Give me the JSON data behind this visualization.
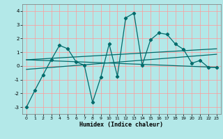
{
  "title": "",
  "xlabel": "Humidex (Indice chaleur)",
  "background_color": "#b3e8e8",
  "grid_color": "#ff9999",
  "line_color": "#006b6b",
  "xlim": [
    -0.5,
    23.5
  ],
  "ylim": [
    -3.5,
    4.5
  ],
  "yticks": [
    -3,
    -2,
    -1,
    0,
    1,
    2,
    3,
    4
  ],
  "xticks": [
    0,
    1,
    2,
    3,
    4,
    5,
    6,
    7,
    8,
    9,
    10,
    11,
    12,
    13,
    14,
    15,
    16,
    17,
    18,
    19,
    20,
    21,
    22,
    23
  ],
  "series": [
    [
      0,
      -3.0
    ],
    [
      1,
      -1.8
    ],
    [
      2,
      -0.65
    ],
    [
      3,
      0.45
    ],
    [
      4,
      1.5
    ],
    [
      5,
      1.25
    ],
    [
      6,
      0.3
    ],
    [
      7,
      0.05
    ],
    [
      8,
      -2.65
    ],
    [
      9,
      -0.8
    ],
    [
      10,
      1.6
    ],
    [
      11,
      -0.75
    ],
    [
      12,
      3.5
    ],
    [
      13,
      3.85
    ],
    [
      14,
      0.05
    ],
    [
      15,
      1.9
    ],
    [
      16,
      2.4
    ],
    [
      17,
      2.3
    ],
    [
      18,
      1.6
    ],
    [
      19,
      1.2
    ],
    [
      20,
      0.2
    ],
    [
      21,
      0.4
    ],
    [
      22,
      -0.1
    ],
    [
      23,
      -0.1
    ]
  ],
  "reg_line1": [
    [
      0,
      -0.25
    ],
    [
      23,
      0.85
    ]
  ],
  "reg_line2": [
    [
      0,
      0.45
    ],
    [
      23,
      1.25
    ]
  ],
  "reg_line3": [
    [
      0,
      0.45
    ],
    [
      23,
      -0.1
    ]
  ]
}
